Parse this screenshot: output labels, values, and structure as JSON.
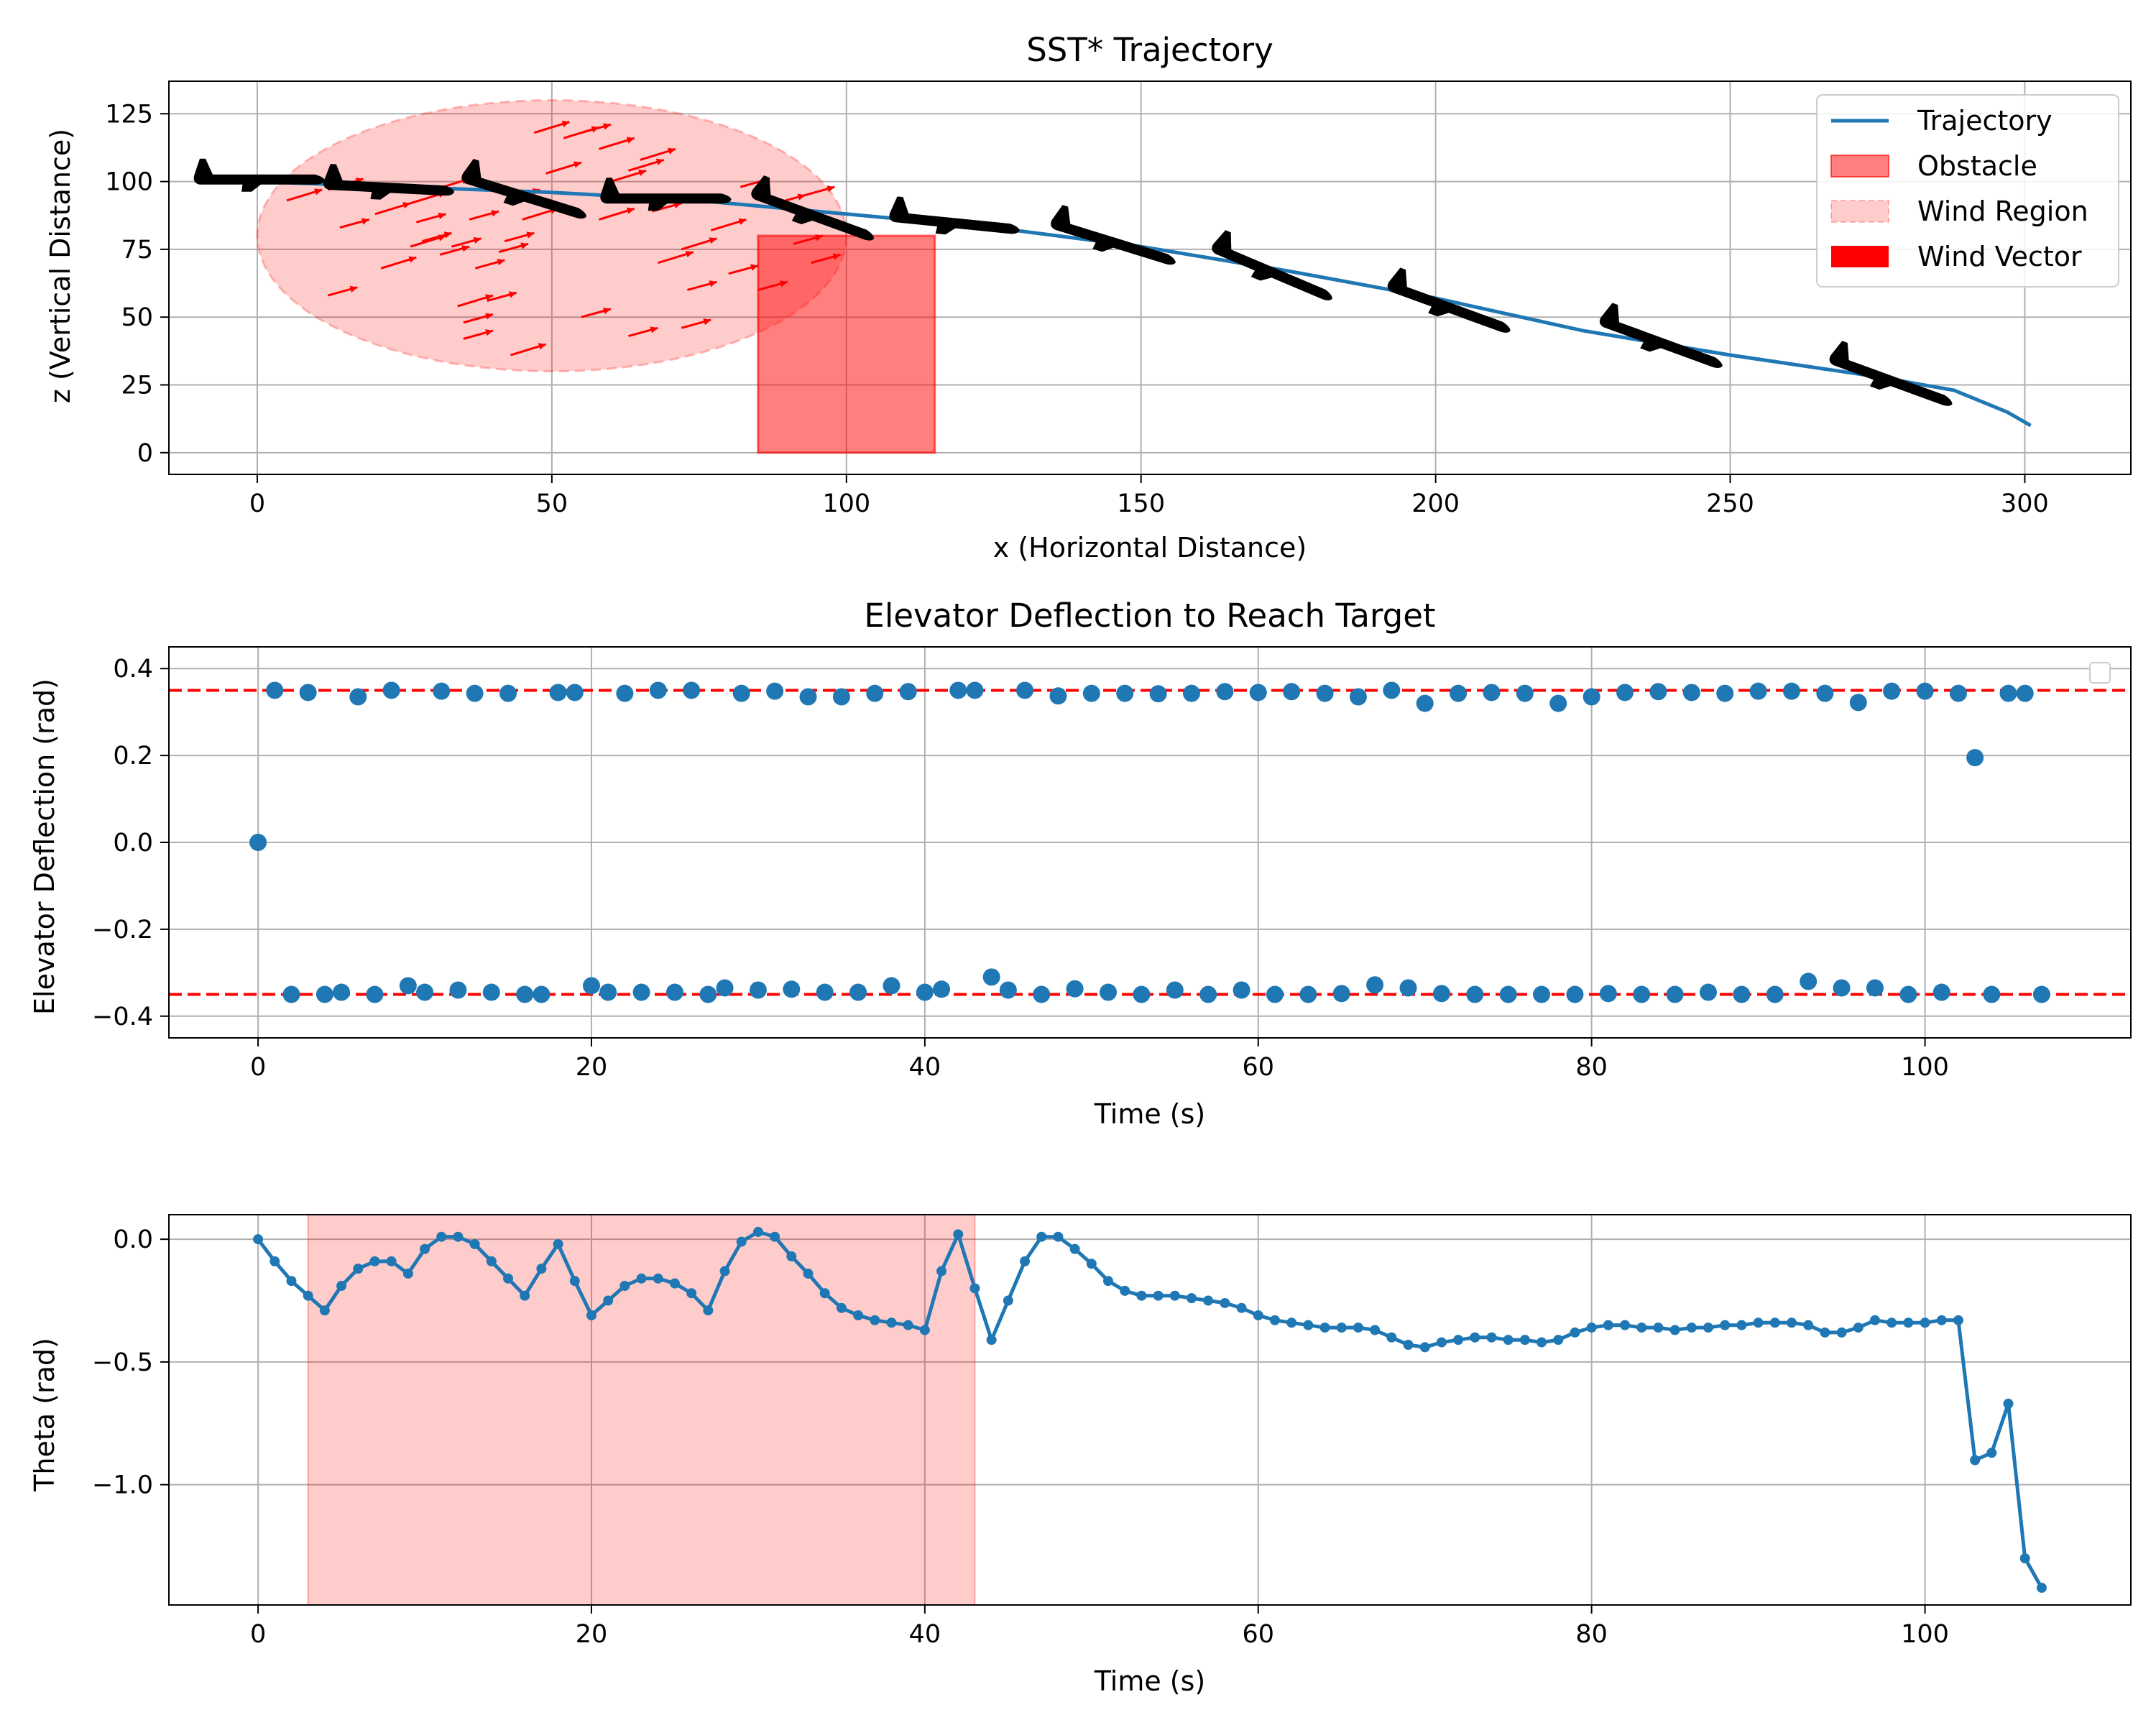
{
  "colors": {
    "trajectory": "#1f77b4",
    "obstacle": "#ff0000",
    "wind": "#ff0000",
    "aircraft": "#000000",
    "limit": "#ff0000",
    "shade": "#ff0000"
  },
  "chart_data": [
    {
      "type": "line",
      "title": "SST* Trajectory",
      "xlabel": "x (Horizontal Distance)",
      "ylabel": "z (Vertical Distance)",
      "xlim": [
        -15,
        318
      ],
      "ylim": [
        -8,
        137
      ],
      "xticks": [
        0,
        50,
        100,
        150,
        200,
        250,
        300
      ],
      "yticks": [
        0,
        25,
        50,
        75,
        100,
        125
      ],
      "grid": true,
      "legend_position": "top-right",
      "legend": [
        "Trajectory",
        "Obstacle",
        "Wind Region",
        "Wind Vector"
      ],
      "series": [
        {
          "name": "Trajectory",
          "x": [
            0,
            25,
            50,
            75,
            100,
            125,
            150,
            175,
            200,
            225,
            250,
            275,
            288,
            297,
            301
          ],
          "y": [
            100,
            98,
            96,
            93,
            88,
            83,
            76,
            67,
            57,
            45,
            36,
            28,
            23,
            15,
            10
          ]
        }
      ],
      "obstacle": {
        "x": [
          85,
          115
        ],
        "y": [
          0,
          80
        ]
      },
      "wind_region": {
        "center": [
          50,
          80
        ],
        "radius_x": 50,
        "radius_z": 50
      },
      "wind_vectors": [
        {
          "x": 5,
          "z": 93,
          "dx": 6,
          "dz": 4
        },
        {
          "x": 12,
          "z": 97,
          "dx": 6,
          "dz": 4
        },
        {
          "x": 12,
          "z": 58,
          "dx": 5,
          "dz": 3
        },
        {
          "x": 14,
          "z": 83,
          "dx": 5,
          "dz": 3
        },
        {
          "x": 20,
          "z": 88,
          "dx": 6,
          "dz": 4
        },
        {
          "x": 21,
          "z": 68,
          "dx": 6,
          "dz": 4
        },
        {
          "x": 26,
          "z": 92,
          "dx": 6,
          "dz": 4
        },
        {
          "x": 26,
          "z": 76,
          "dx": 6,
          "dz": 4
        },
        {
          "x": 27,
          "z": 85,
          "dx": 5,
          "dz": 3
        },
        {
          "x": 28,
          "z": 78,
          "dx": 5,
          "dz": 3
        },
        {
          "x": 30,
          "z": 97,
          "dx": 6,
          "dz": 4
        },
        {
          "x": 31,
          "z": 73,
          "dx": 5,
          "dz": 3
        },
        {
          "x": 33,
          "z": 76,
          "dx": 5,
          "dz": 3
        },
        {
          "x": 34,
          "z": 54,
          "dx": 6,
          "dz": 4
        },
        {
          "x": 35,
          "z": 42,
          "dx": 5,
          "dz": 3
        },
        {
          "x": 35,
          "z": 48,
          "dx": 5,
          "dz": 3
        },
        {
          "x": 36,
          "z": 86,
          "dx": 5,
          "dz": 3
        },
        {
          "x": 37,
          "z": 68,
          "dx": 5,
          "dz": 3
        },
        {
          "x": 39,
          "z": 56,
          "dx": 5,
          "dz": 3
        },
        {
          "x": 41,
          "z": 74,
          "dx": 5,
          "dz": 3
        },
        {
          "x": 42,
          "z": 78,
          "dx": 5,
          "dz": 3
        },
        {
          "x": 43,
          "z": 36,
          "dx": 6,
          "dz": 4
        },
        {
          "x": 43,
          "z": 94,
          "dx": 5,
          "dz": 3
        },
        {
          "x": 45,
          "z": 86,
          "dx": 6,
          "dz": 4
        },
        {
          "x": 47,
          "z": 118,
          "dx": 6,
          "dz": 4
        },
        {
          "x": 49,
          "z": 103,
          "dx": 6,
          "dz": 4
        },
        {
          "x": 52,
          "z": 116,
          "dx": 6,
          "dz": 4
        },
        {
          "x": 55,
          "z": 118,
          "dx": 5,
          "dz": 3
        },
        {
          "x": 55,
          "z": 50,
          "dx": 5,
          "dz": 3
        },
        {
          "x": 58,
          "z": 112,
          "dx": 6,
          "dz": 4
        },
        {
          "x": 58,
          "z": 86,
          "dx": 6,
          "dz": 4
        },
        {
          "x": 60,
          "z": 100,
          "dx": 6,
          "dz": 4
        },
        {
          "x": 63,
          "z": 104,
          "dx": 6,
          "dz": 4
        },
        {
          "x": 63,
          "z": 43,
          "dx": 5,
          "dz": 3
        },
        {
          "x": 65,
          "z": 108,
          "dx": 6,
          "dz": 4
        },
        {
          "x": 67,
          "z": 89,
          "dx": 5,
          "dz": 3
        },
        {
          "x": 68,
          "z": 70,
          "dx": 6,
          "dz": 4
        },
        {
          "x": 72,
          "z": 75,
          "dx": 6,
          "dz": 4
        },
        {
          "x": 72,
          "z": 46,
          "dx": 5,
          "dz": 3
        },
        {
          "x": 73,
          "z": 60,
          "dx": 5,
          "dz": 3
        },
        {
          "x": 77,
          "z": 82,
          "dx": 6,
          "dz": 4
        },
        {
          "x": 80,
          "z": 66,
          "dx": 5,
          "dz": 3
        },
        {
          "x": 82,
          "z": 98,
          "dx": 5,
          "dz": 3
        },
        {
          "x": 85,
          "z": 60,
          "dx": 5,
          "dz": 3
        },
        {
          "x": 88,
          "z": 92,
          "dx": 5,
          "dz": 3
        },
        {
          "x": 91,
          "z": 77,
          "dx": 5,
          "dz": 3
        },
        {
          "x": 93,
          "z": 95,
          "dx": 5,
          "dz": 3
        },
        {
          "x": 94,
          "z": 70,
          "dx": 5,
          "dz": 3
        }
      ],
      "aircraft": [
        {
          "x": 0,
          "z": 101,
          "pitch": 0.0
        },
        {
          "x": 22,
          "z": 98,
          "pitch": -0.05
        },
        {
          "x": 45,
          "z": 95,
          "pitch": -0.3
        },
        {
          "x": 69,
          "z": 94,
          "pitch": 0.0
        },
        {
          "x": 94,
          "z": 88,
          "pitch": -0.35
        },
        {
          "x": 118,
          "z": 85,
          "pitch": -0.1
        },
        {
          "x": 145,
          "z": 78,
          "pitch": -0.3
        },
        {
          "x": 172,
          "z": 67,
          "pitch": -0.4
        },
        {
          "x": 202,
          "z": 54,
          "pitch": -0.35
        },
        {
          "x": 238,
          "z": 41,
          "pitch": -0.35
        },
        {
          "x": 277,
          "z": 27,
          "pitch": -0.35
        }
      ]
    },
    {
      "type": "scatter",
      "title": "Elevator Deflection to Reach Target",
      "xlabel": "Time (s)",
      "ylabel": "Elevator Deflection (rad)",
      "xlim": [
        -5.35,
        112.35
      ],
      "ylim": [
        -0.45,
        0.45
      ],
      "xticks": [
        0,
        20,
        40,
        60,
        80,
        100
      ],
      "yticks": [
        -0.4,
        -0.2,
        0.0,
        0.2,
        0.4
      ],
      "grid": true,
      "limits": [
        0.35,
        -0.35
      ],
      "legend_position": "top-right",
      "x": [
        0,
        1,
        2,
        3,
        4,
        5,
        6,
        7,
        8,
        9,
        10,
        11,
        12,
        13,
        14,
        15,
        16,
        17,
        18,
        19,
        20,
        21,
        22,
        23,
        24,
        25,
        26,
        27,
        28,
        29,
        30,
        31,
        32,
        33,
        34,
        35,
        36,
        37,
        38,
        39,
        40,
        41,
        42,
        43,
        44,
        45,
        46,
        47,
        48,
        49,
        50,
        51,
        52,
        53,
        54,
        55,
        56,
        57,
        58,
        59,
        60,
        61,
        62,
        63,
        64,
        65,
        66,
        67,
        68,
        69,
        70,
        71,
        72,
        73,
        74,
        75,
        76,
        77,
        78,
        79,
        80,
        81,
        82,
        83,
        84,
        85,
        86,
        87,
        88,
        89,
        90,
        91,
        92,
        93,
        94,
        95,
        96,
        97,
        98,
        99,
        100,
        101,
        102,
        103,
        104,
        105,
        106,
        107
      ],
      "y": [
        0.0,
        0.35,
        -0.35,
        0.345,
        -0.35,
        -0.345,
        0.335,
        -0.35,
        0.35,
        -0.33,
        -0.345,
        0.348,
        -0.34,
        0.343,
        -0.345,
        0.343,
        -0.35,
        -0.35,
        0.345,
        0.345,
        -0.33,
        -0.345,
        0.343,
        -0.345,
        0.35,
        -0.345,
        0.35,
        -0.35,
        -0.335,
        0.343,
        -0.34,
        0.348,
        -0.338,
        0.335,
        -0.345,
        0.335,
        -0.345,
        0.343,
        -0.33,
        0.347,
        -0.345,
        -0.338,
        0.35,
        0.35,
        -0.31,
        -0.34,
        0.35,
        -0.35,
        0.337,
        -0.337,
        0.343,
        -0.345,
        0.343,
        -0.35,
        0.342,
        -0.34,
        0.343,
        -0.35,
        0.347,
        -0.34,
        0.345,
        -0.35,
        0.347,
        -0.35,
        0.343,
        -0.348,
        0.335,
        -0.328,
        0.35,
        -0.335,
        0.32,
        -0.348,
        0.343,
        -0.35,
        0.345,
        -0.35,
        0.343,
        -0.35,
        0.32,
        -0.35,
        0.335,
        -0.348,
        0.345,
        -0.35,
        0.347,
        -0.35,
        0.345,
        -0.345,
        0.343,
        -0.35,
        0.348,
        -0.35,
        0.348,
        -0.32,
        0.343,
        -0.335,
        0.322,
        -0.335,
        0.348,
        -0.35,
        0.348,
        -0.345,
        0.343,
        0.195,
        -0.35,
        0.343,
        0.343,
        -0.35
      ]
    },
    {
      "type": "line",
      "title": "",
      "xlabel": "Time (s)",
      "ylabel": "Theta (rad)",
      "xlim": [
        -5.35,
        112.35
      ],
      "ylim": [
        -1.49,
        0.1
      ],
      "xticks": [
        0,
        20,
        40,
        60,
        80,
        100
      ],
      "yticks": [
        0.0,
        -0.5,
        -1.0
      ],
      "grid": true,
      "shaded_region": [
        3,
        43
      ],
      "x": [
        0,
        1,
        2,
        3,
        4,
        5,
        6,
        7,
        8,
        9,
        10,
        11,
        12,
        13,
        14,
        15,
        16,
        17,
        18,
        19,
        20,
        21,
        22,
        23,
        24,
        25,
        26,
        27,
        28,
        29,
        30,
        31,
        32,
        33,
        34,
        35,
        36,
        37,
        38,
        39,
        40,
        41,
        42,
        43,
        44,
        45,
        46,
        47,
        48,
        49,
        50,
        51,
        52,
        53,
        54,
        55,
        56,
        57,
        58,
        59,
        60,
        61,
        62,
        63,
        64,
        65,
        66,
        67,
        68,
        69,
        70,
        71,
        72,
        73,
        74,
        75,
        76,
        77,
        78,
        79,
        80,
        81,
        82,
        83,
        84,
        85,
        86,
        87,
        88,
        89,
        90,
        91,
        92,
        93,
        94,
        95,
        96,
        97,
        98,
        99,
        100,
        101,
        102,
        103,
        104,
        105,
        106,
        107
      ],
      "y": [
        0.0,
        -0.09,
        -0.17,
        -0.23,
        -0.29,
        -0.19,
        -0.12,
        -0.09,
        -0.09,
        -0.14,
        -0.04,
        0.01,
        0.01,
        -0.02,
        -0.09,
        -0.16,
        -0.23,
        -0.12,
        -0.02,
        -0.17,
        -0.31,
        -0.25,
        -0.19,
        -0.16,
        -0.16,
        -0.18,
        -0.22,
        -0.29,
        -0.13,
        -0.01,
        0.03,
        0.01,
        -0.07,
        -0.14,
        -0.22,
        -0.28,
        -0.31,
        -0.33,
        -0.34,
        -0.35,
        -0.37,
        -0.13,
        0.02,
        -0.2,
        -0.41,
        -0.25,
        -0.09,
        0.01,
        0.01,
        -0.04,
        -0.1,
        -0.17,
        -0.21,
        -0.23,
        -0.23,
        -0.23,
        -0.24,
        -0.25,
        -0.26,
        -0.28,
        -0.31,
        -0.33,
        -0.34,
        -0.35,
        -0.36,
        -0.36,
        -0.36,
        -0.37,
        -0.4,
        -0.43,
        -0.44,
        -0.42,
        -0.41,
        -0.4,
        -0.4,
        -0.41,
        -0.41,
        -0.42,
        -0.41,
        -0.38,
        -0.36,
        -0.35,
        -0.35,
        -0.36,
        -0.36,
        -0.37,
        -0.36,
        -0.36,
        -0.35,
        -0.35,
        -0.34,
        -0.34,
        -0.34,
        -0.35,
        -0.38,
        -0.38,
        -0.36,
        -0.33,
        -0.34,
        -0.34,
        -0.34,
        -0.33,
        -0.33,
        -0.9,
        -0.87,
        -0.67,
        -1.3,
        -1.42
      ]
    }
  ]
}
